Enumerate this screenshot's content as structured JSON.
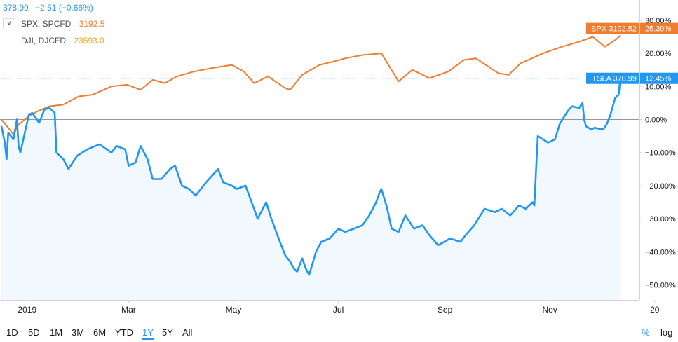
{
  "header": {
    "price": "378.99",
    "change": "−2.51 (−0.66%)"
  },
  "legend": [
    {
      "name": "SPX, SPCFD",
      "value": "3192.5",
      "color": "#ef7d31"
    },
    {
      "name": "DJI, DJCFD",
      "value": "23593.0",
      "color": "#f5a623"
    }
  ],
  "toggle_icon": "chevron-down-icon",
  "range_buttons": [
    "1D",
    "5D",
    "1M",
    "3M",
    "6M",
    "YTD",
    "1Y",
    "5Y",
    "All"
  ],
  "active_range": "1Y",
  "scale_toggles": {
    "percent": "%",
    "log": "log"
  },
  "colors": {
    "tsla": "#2196f3",
    "spx": "#ef7d31",
    "dji": "#f5a623",
    "zero": "#9598a1"
  },
  "chart_data": {
    "type": "line",
    "x_ticks": [
      "2019",
      "Mar",
      "May",
      "Jul",
      "Sep",
      "Nov",
      "20"
    ],
    "y_ticks": [
      "30.00%",
      "20.00%",
      "10.00%",
      "0.00%",
      "−10.00%",
      "−20.00%",
      "−30.00%",
      "−40.00%",
      "−50.00%"
    ],
    "ylim": [
      -53,
      35
    ],
    "y_unit": "%",
    "series": [
      {
        "name": "SPX",
        "last_label": "SPX 3192.52",
        "last_pct": "25.39%",
        "points": [
          [
            "2018-12-17",
            0.0
          ],
          [
            "2018-12-21",
            -2.5
          ],
          [
            "2018-12-24",
            -4.5
          ],
          [
            "2018-12-27",
            -1.5
          ],
          [
            "2019-01-02",
            1.0
          ],
          [
            "2019-01-07",
            2.5
          ],
          [
            "2019-01-14",
            4.0
          ],
          [
            "2019-01-22",
            4.5
          ],
          [
            "2019-01-31",
            7.0
          ],
          [
            "2019-02-08",
            7.5
          ],
          [
            "2019-02-19",
            10.0
          ],
          [
            "2019-02-28",
            10.5
          ],
          [
            "2019-03-08",
            9.0
          ],
          [
            "2019-03-15",
            12.0
          ],
          [
            "2019-03-22",
            11.0
          ],
          [
            "2019-03-29",
            13.0
          ],
          [
            "2019-04-08",
            14.5
          ],
          [
            "2019-04-18",
            15.5
          ],
          [
            "2019-04-30",
            16.5
          ],
          [
            "2019-05-07",
            14.5
          ],
          [
            "2019-05-13",
            11.0
          ],
          [
            "2019-05-21",
            13.0
          ],
          [
            "2019-05-31",
            9.5
          ],
          [
            "2019-06-03",
            9.0
          ],
          [
            "2019-06-10",
            13.5
          ],
          [
            "2019-06-20",
            16.5
          ],
          [
            "2019-06-28",
            17.5
          ],
          [
            "2019-07-05",
            18.5
          ],
          [
            "2019-07-15",
            19.5
          ],
          [
            "2019-07-26",
            20.0
          ],
          [
            "2019-08-05",
            11.5
          ],
          [
            "2019-08-13",
            15.0
          ],
          [
            "2019-08-23",
            12.5
          ],
          [
            "2019-09-03",
            14.5
          ],
          [
            "2019-09-12",
            18.0
          ],
          [
            "2019-09-19",
            18.5
          ],
          [
            "2019-10-02",
            14.0
          ],
          [
            "2019-10-08",
            13.5
          ],
          [
            "2019-10-15",
            17.0
          ],
          [
            "2019-10-28",
            20.0
          ],
          [
            "2019-11-08",
            22.0
          ],
          [
            "2019-11-18",
            23.5
          ],
          [
            "2019-11-26",
            25.0
          ],
          [
            "2019-12-03",
            22.0
          ],
          [
            "2019-12-09",
            24.0
          ],
          [
            "2019-12-12",
            25.39
          ]
        ]
      },
      {
        "name": "TSLA",
        "last_label": "TSLA 378.99",
        "last_pct": "12.45%",
        "points": [
          [
            "2018-12-17",
            -2.0
          ],
          [
            "2018-12-19",
            -7.0
          ],
          [
            "2018-12-20",
            -12.0
          ],
          [
            "2018-12-21",
            -4.0
          ],
          [
            "2018-12-24",
            -6.0
          ],
          [
            "2018-12-26",
            0.0
          ],
          [
            "2018-12-27",
            -8.0
          ],
          [
            "2018-12-28",
            -10.0
          ],
          [
            "2019-01-02",
            1.5
          ],
          [
            "2019-01-04",
            2.0
          ],
          [
            "2019-01-08",
            -1.0
          ],
          [
            "2019-01-11",
            3.0
          ],
          [
            "2019-01-14",
            3.5
          ],
          [
            "2019-01-17",
            2.0
          ],
          [
            "2019-01-18",
            -10.0
          ],
          [
            "2019-01-22",
            -12.0
          ],
          [
            "2019-01-25",
            -15.0
          ],
          [
            "2019-01-30",
            -11.0
          ],
          [
            "2019-02-05",
            -9.0
          ],
          [
            "2019-02-12",
            -7.5
          ],
          [
            "2019-02-19",
            -10.0
          ],
          [
            "2019-02-22",
            -8.0
          ],
          [
            "2019-02-27",
            -9.0
          ],
          [
            "2019-03-01",
            -14.0
          ],
          [
            "2019-03-05",
            -13.0
          ],
          [
            "2019-03-08",
            -8.0
          ],
          [
            "2019-03-12",
            -12.0
          ],
          [
            "2019-03-15",
            -18.0
          ],
          [
            "2019-03-20",
            -18.0
          ],
          [
            "2019-03-25",
            -15.0
          ],
          [
            "2019-03-28",
            -14.0
          ],
          [
            "2019-04-01",
            -20.0
          ],
          [
            "2019-04-05",
            -21.0
          ],
          [
            "2019-04-09",
            -23.0
          ],
          [
            "2019-04-15",
            -19.0
          ],
          [
            "2019-04-22",
            -15.0
          ],
          [
            "2019-04-25",
            -19.0
          ],
          [
            "2019-04-30",
            -20.0
          ],
          [
            "2019-05-03",
            -21.0
          ],
          [
            "2019-05-08",
            -20.0
          ],
          [
            "2019-05-13",
            -27.0
          ],
          [
            "2019-05-15",
            -30.0
          ],
          [
            "2019-05-17",
            -28.0
          ],
          [
            "2019-05-20",
            -25.0
          ],
          [
            "2019-05-23",
            -30.0
          ],
          [
            "2019-05-28",
            -37.0
          ],
          [
            "2019-05-31",
            -41.0
          ],
          [
            "2019-06-03",
            -43.0
          ],
          [
            "2019-06-05",
            -45.0
          ],
          [
            "2019-06-07",
            -46.0
          ],
          [
            "2019-06-10",
            -42.0
          ],
          [
            "2019-06-12",
            -45.0
          ],
          [
            "2019-06-14",
            -47.0
          ],
          [
            "2019-06-18",
            -40.0
          ],
          [
            "2019-06-21",
            -37.0
          ],
          [
            "2019-06-26",
            -36.0
          ],
          [
            "2019-07-01",
            -33.0
          ],
          [
            "2019-07-05",
            -34.0
          ],
          [
            "2019-07-10",
            -33.0
          ],
          [
            "2019-07-15",
            -32.0
          ],
          [
            "2019-07-19",
            -29.0
          ],
          [
            "2019-07-23",
            -25.0
          ],
          [
            "2019-07-25",
            -22.0
          ],
          [
            "2019-07-26",
            -21.0
          ],
          [
            "2019-07-29",
            -26.0
          ],
          [
            "2019-08-01",
            -33.0
          ],
          [
            "2019-08-05",
            -34.0
          ],
          [
            "2019-08-09",
            -29.0
          ],
          [
            "2019-08-14",
            -33.0
          ],
          [
            "2019-08-19",
            -32.0
          ],
          [
            "2019-08-23",
            -35.0
          ],
          [
            "2019-08-28",
            -38.0
          ],
          [
            "2019-09-04",
            -36.0
          ],
          [
            "2019-09-10",
            -37.0
          ],
          [
            "2019-09-13",
            -35.0
          ],
          [
            "2019-09-18",
            -32.0
          ],
          [
            "2019-09-24",
            -27.0
          ],
          [
            "2019-09-30",
            -28.0
          ],
          [
            "2019-10-04",
            -27.0
          ],
          [
            "2019-10-09",
            -29.0
          ],
          [
            "2019-10-14",
            -26.0
          ],
          [
            "2019-10-18",
            -27.0
          ],
          [
            "2019-10-22",
            -25.0
          ],
          [
            "2019-10-23",
            -26.0
          ],
          [
            "2019-10-24",
            -15.0
          ],
          [
            "2019-10-25",
            -5.0
          ],
          [
            "2019-10-28",
            -6.0
          ],
          [
            "2019-10-31",
            -7.0
          ],
          [
            "2019-11-04",
            -6.0
          ],
          [
            "2019-11-07",
            -1.0
          ],
          [
            "2019-11-12",
            3.0
          ],
          [
            "2019-11-14",
            4.0
          ],
          [
            "2019-11-18",
            3.5
          ],
          [
            "2019-11-20",
            5.0
          ],
          [
            "2019-11-21",
            0.0
          ],
          [
            "2019-11-22",
            -2.0
          ],
          [
            "2019-11-25",
            -3.0
          ],
          [
            "2019-11-27",
            -2.5
          ],
          [
            "2019-12-02",
            -3.0
          ],
          [
            "2019-12-04",
            -1.5
          ],
          [
            "2019-12-06",
            1.0
          ],
          [
            "2019-12-09",
            6.5
          ],
          [
            "2019-12-11",
            7.5
          ],
          [
            "2019-12-12",
            12.45
          ]
        ]
      }
    ]
  }
}
